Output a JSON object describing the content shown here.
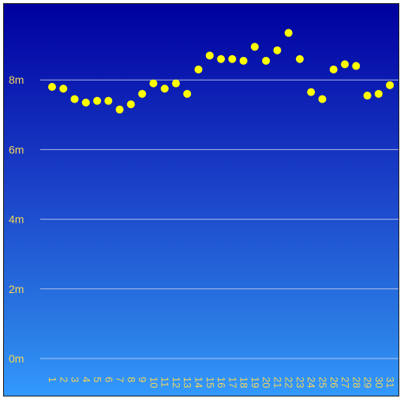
{
  "chart_data": {
    "type": "scatter",
    "title": "",
    "xlabel": "",
    "ylabel": "",
    "categories": [
      "1",
      "2",
      "3",
      "4",
      "5",
      "6",
      "7",
      "8",
      "9",
      "10",
      "11",
      "12",
      "13",
      "14",
      "15",
      "16",
      "17",
      "18",
      "19",
      "20",
      "21",
      "22",
      "23",
      "24",
      "25",
      "26",
      "27",
      "28",
      "29",
      "30",
      "31"
    ],
    "series": [
      {
        "values": [
          7.8,
          7.75,
          7.45,
          7.35,
          7.4,
          7.4,
          7.15,
          7.3,
          7.6,
          7.9,
          7.75,
          7.9,
          7.6,
          8.3,
          8.7,
          8.6,
          8.6,
          8.55,
          8.95,
          8.55,
          8.85,
          9.35,
          8.6,
          7.65,
          7.45,
          8.3,
          8.45,
          8.4,
          7.55,
          7.6,
          7.85
        ]
      }
    ],
    "y_ticks": [
      "0m",
      "2m",
      "4m",
      "6m",
      "8m"
    ],
    "y_tick_values": [
      0,
      2,
      4,
      6,
      8
    ],
    "ylim": [
      0,
      10
    ],
    "grid": true,
    "legend": "none",
    "colors": {
      "point": "#ffff00",
      "tick_label": "#f2d55a",
      "grid": "#c8d2f0",
      "background_top": "#00009f",
      "background_bottom": "#3399ff"
    }
  }
}
